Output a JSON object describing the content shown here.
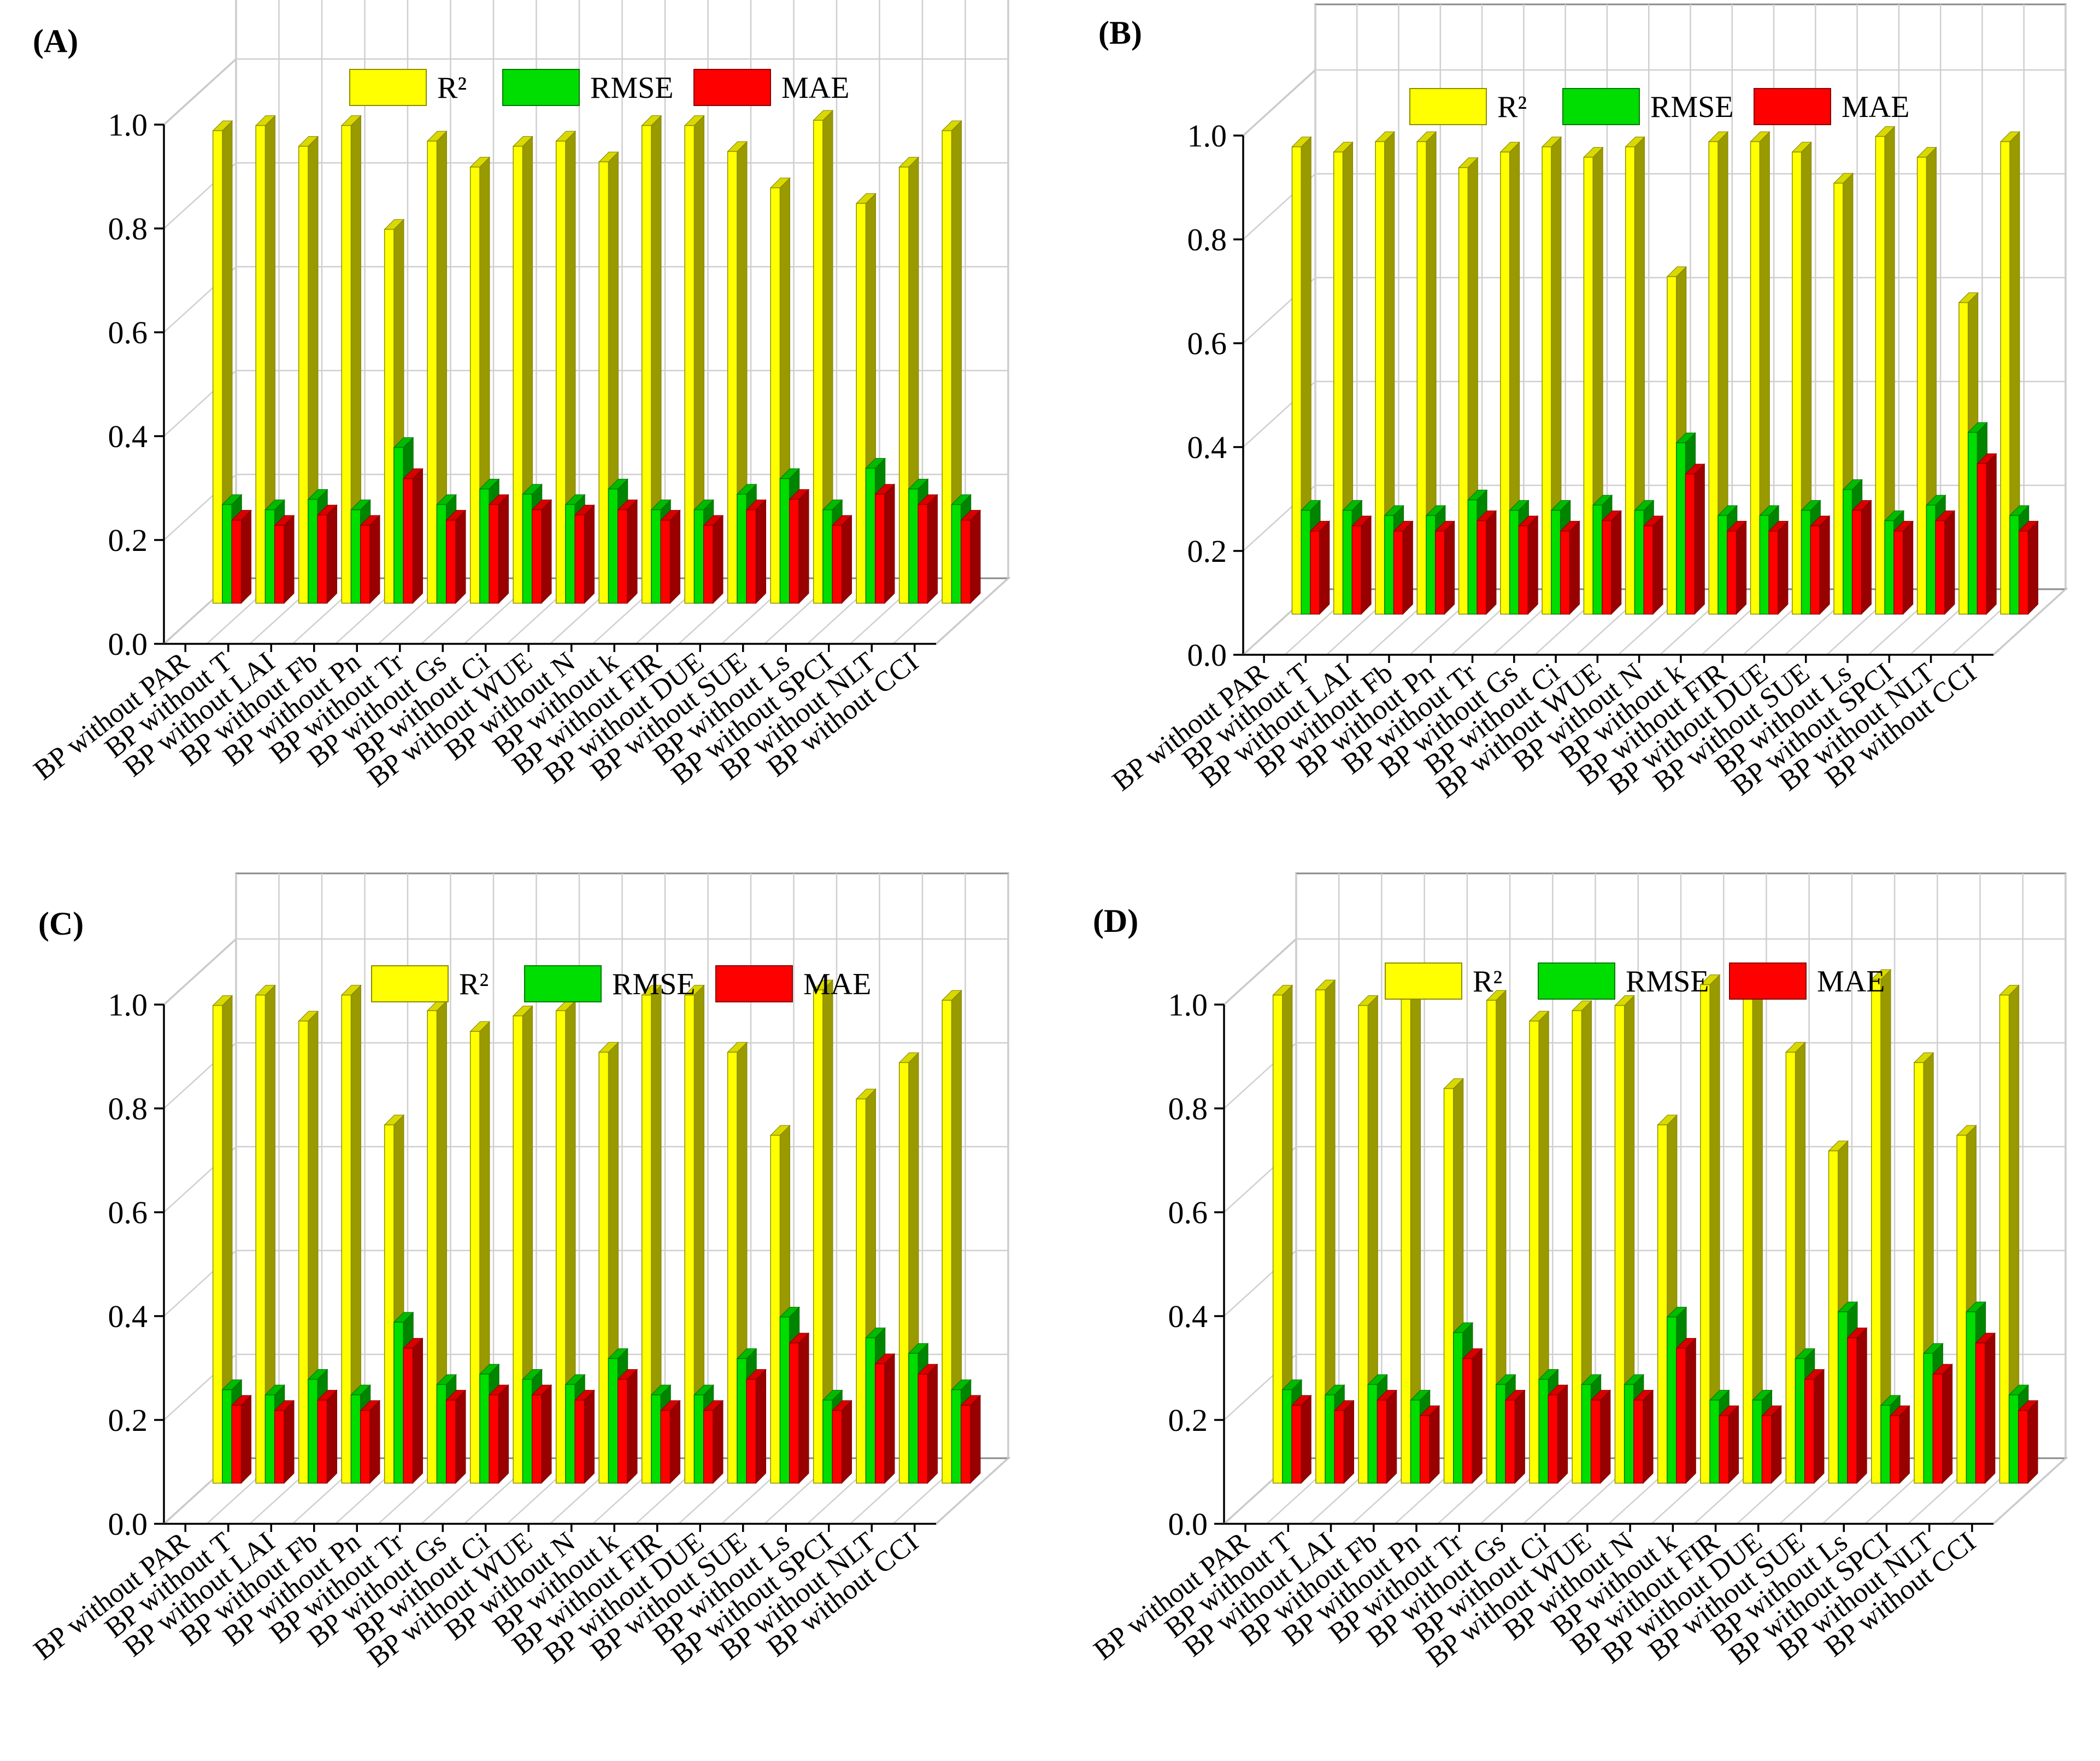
{
  "chart_data": [
    {
      "type": "bar",
      "panel_label": "(A)",
      "categories": [
        "BP without PAR",
        "BP without T",
        "BP without LAI",
        "BP without Fb",
        "BP without Pn",
        "BP without Tr",
        "BP without Gs",
        "BP without Ci",
        "BP without WUE",
        "BP without N",
        "BP without k",
        "BP without FIR",
        "BP without DUE",
        "BP without SUE",
        "BP without Ls",
        "BP without SPCI",
        "BP without NLT",
        "BP without CCI"
      ],
      "series": [
        {
          "name": "R²",
          "color": "#ffff00",
          "values": [
            0.91,
            0.92,
            0.88,
            0.92,
            0.72,
            0.89,
            0.84,
            0.88,
            0.89,
            0.85,
            0.92,
            0.92,
            0.87,
            0.8,
            0.93,
            0.77,
            0.84,
            0.91
          ]
        },
        {
          "name": "RMSE",
          "color": "#00dd00",
          "values": [
            0.19,
            0.18,
            0.2,
            0.18,
            0.3,
            0.19,
            0.22,
            0.21,
            0.19,
            0.22,
            0.18,
            0.18,
            0.21,
            0.24,
            0.18,
            0.26,
            0.22,
            0.19
          ]
        },
        {
          "name": "MAE",
          "color": "#ff0000",
          "values": [
            0.16,
            0.15,
            0.17,
            0.15,
            0.24,
            0.16,
            0.19,
            0.18,
            0.17,
            0.18,
            0.16,
            0.15,
            0.18,
            0.2,
            0.15,
            0.21,
            0.19,
            0.16
          ]
        }
      ],
      "yticks": [
        "0.0",
        "0.2",
        "0.4",
        "0.6",
        "0.8",
        "1.0"
      ],
      "ylim": [
        0,
        1.0
      ],
      "legend_position": "top"
    },
    {
      "type": "bar",
      "panel_label": "(B)",
      "categories": [
        "BP without PAR",
        "BP without T",
        "BP without LAI",
        "BP without Fb",
        "BP without Pn",
        "BP without Tr",
        "BP without Gs",
        "BP without Ci",
        "BP without WUE",
        "BP without N",
        "BP without k",
        "BP without FIR",
        "BP without DUE",
        "BP without SUE",
        "BP without Ls",
        "BP without SPCI",
        "BP without NLT",
        "BP without CCI"
      ],
      "series": [
        {
          "name": "R²",
          "color": "#ffff00",
          "values": [
            0.9,
            0.89,
            0.91,
            0.91,
            0.86,
            0.89,
            0.9,
            0.88,
            0.9,
            0.65,
            0.91,
            0.91,
            0.89,
            0.83,
            0.92,
            0.88,
            0.6,
            0.91
          ]
        },
        {
          "name": "RMSE",
          "color": "#00dd00",
          "values": [
            0.2,
            0.2,
            0.19,
            0.19,
            0.22,
            0.2,
            0.2,
            0.21,
            0.2,
            0.33,
            0.19,
            0.19,
            0.2,
            0.24,
            0.18,
            0.21,
            0.35,
            0.19
          ]
        },
        {
          "name": "MAE",
          "color": "#ff0000",
          "values": [
            0.16,
            0.17,
            0.16,
            0.16,
            0.18,
            0.17,
            0.16,
            0.18,
            0.17,
            0.27,
            0.16,
            0.16,
            0.17,
            0.2,
            0.16,
            0.18,
            0.29,
            0.16
          ]
        }
      ],
      "yticks": [
        "0.0",
        "0.2",
        "0.4",
        "0.6",
        "0.8",
        "1.0"
      ],
      "ylim": [
        0,
        1.0
      ],
      "legend_position": "top"
    },
    {
      "type": "bar",
      "panel_label": "(C)",
      "categories": [
        "BP without PAR",
        "BP without T",
        "BP without LAI",
        "BP without Fb",
        "BP without Pn",
        "BP without Tr",
        "BP without Gs",
        "BP without Ci",
        "BP without WUE",
        "BP without N",
        "BP without k",
        "BP without FIR",
        "BP without DUE",
        "BP without SUE",
        "BP without Ls",
        "BP without SPCI",
        "BP without NLT",
        "BP without CCI"
      ],
      "series": [
        {
          "name": "R²",
          "color": "#ffff00",
          "values": [
            0.92,
            0.94,
            0.89,
            0.94,
            0.69,
            0.91,
            0.87,
            0.9,
            0.91,
            0.83,
            0.94,
            0.94,
            0.83,
            0.67,
            0.95,
            0.74,
            0.81,
            0.93
          ]
        },
        {
          "name": "RMSE",
          "color": "#00dd00",
          "values": [
            0.18,
            0.17,
            0.2,
            0.17,
            0.31,
            0.19,
            0.21,
            0.2,
            0.19,
            0.24,
            0.17,
            0.17,
            0.24,
            0.32,
            0.16,
            0.28,
            0.25,
            0.18
          ]
        },
        {
          "name": "MAE",
          "color": "#ff0000",
          "values": [
            0.15,
            0.14,
            0.16,
            0.14,
            0.26,
            0.16,
            0.17,
            0.17,
            0.16,
            0.2,
            0.14,
            0.14,
            0.2,
            0.27,
            0.14,
            0.23,
            0.21,
            0.15
          ]
        }
      ],
      "yticks": [
        "0.0",
        "0.2",
        "0.4",
        "0.6",
        "0.8",
        "1.0"
      ],
      "ylim": [
        0,
        1.0
      ],
      "legend_position": "top"
    },
    {
      "type": "bar",
      "panel_label": "(D)",
      "categories": [
        "BP without PAR",
        "BP without T",
        "BP without LAI",
        "BP without Fb",
        "BP without Pn",
        "BP without Tr",
        "BP without Gs",
        "BP without Ci",
        "BP without WUE",
        "BP without N",
        "BP without k",
        "BP without FIR",
        "BP without DUE",
        "BP without SUE",
        "BP without Ls",
        "BP without SPCI",
        "BP without NLT",
        "BP without CCI"
      ],
      "series": [
        {
          "name": "R²",
          "color": "#ffff00",
          "values": [
            0.94,
            0.95,
            0.92,
            0.96,
            0.76,
            0.93,
            0.89,
            0.91,
            0.92,
            0.69,
            0.96,
            0.96,
            0.83,
            0.64,
            0.97,
            0.81,
            0.67,
            0.94
          ]
        },
        {
          "name": "RMSE",
          "color": "#00dd00",
          "values": [
            0.18,
            0.17,
            0.19,
            0.16,
            0.29,
            0.19,
            0.2,
            0.19,
            0.19,
            0.32,
            0.16,
            0.16,
            0.24,
            0.33,
            0.15,
            0.25,
            0.33,
            0.17
          ]
        },
        {
          "name": "MAE",
          "color": "#ff0000",
          "values": [
            0.15,
            0.14,
            0.16,
            0.13,
            0.24,
            0.16,
            0.17,
            0.16,
            0.16,
            0.26,
            0.13,
            0.13,
            0.2,
            0.28,
            0.13,
            0.21,
            0.27,
            0.14
          ]
        }
      ],
      "yticks": [
        "0.0",
        "0.2",
        "0.4",
        "0.6",
        "0.8",
        "1.0"
      ],
      "ylim": [
        0,
        1.0
      ],
      "legend_position": "top"
    }
  ]
}
